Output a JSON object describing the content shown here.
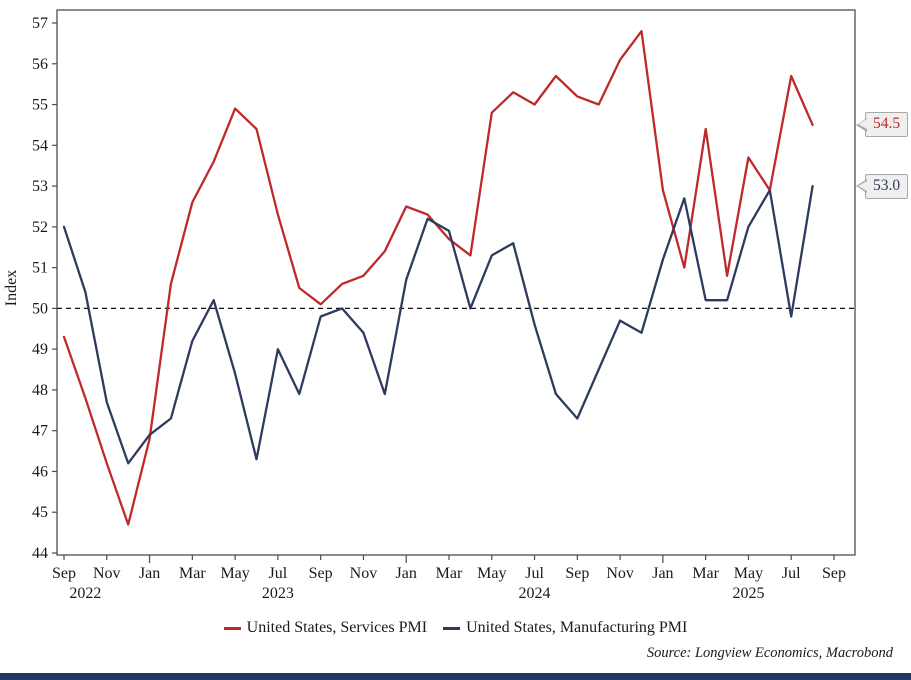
{
  "chart_data": {
    "type": "line",
    "title": "",
    "ylabel": "Index",
    "ylim": [
      44,
      57
    ],
    "y_tick_step": 1,
    "reference_line_y": 50,
    "grid": false,
    "legend_position": "bottom",
    "x": [
      "Sep 2022",
      "Oct 2022",
      "Nov 2022",
      "Dec 2022",
      "Jan 2023",
      "Feb 2023",
      "Mar 2023",
      "Apr 2023",
      "May 2023",
      "Jun 2023",
      "Jul 2023",
      "Aug 2023",
      "Sep 2023",
      "Oct 2023",
      "Nov 2023",
      "Dec 2023",
      "Jan 2024",
      "Feb 2024",
      "Mar 2024",
      "Apr 2024",
      "May 2024",
      "Jun 2024",
      "Jul 2024",
      "Aug 2024",
      "Sep 2024",
      "Oct 2024",
      "Nov 2024",
      "Dec 2024",
      "Jan 2025",
      "Feb 2025",
      "Mar 2025",
      "Apr 2025",
      "May 2025",
      "Jun 2025",
      "Jul 2025",
      "Aug 2025"
    ],
    "x_axis": {
      "tick_labels": [
        "Sep",
        "Nov",
        "Jan",
        "Mar",
        "May",
        "Jul",
        "Sep",
        "Nov",
        "Jan",
        "Mar",
        "May",
        "Jul",
        "Sep",
        "Nov",
        "Jan",
        "Mar",
        "May",
        "Jul",
        "Sep"
      ],
      "tick_every_months": 2,
      "year_labels": [
        {
          "text": "2022",
          "month_index": 1
        },
        {
          "text": "2023",
          "month_index": 10
        },
        {
          "text": "2024",
          "month_index": 22
        },
        {
          "text": "2025",
          "month_index": 32
        }
      ]
    },
    "series": [
      {
        "name": "United States, Services PMI",
        "color": "#be2a2b",
        "end_label": "54.5",
        "values": [
          49.3,
          47.8,
          46.2,
          44.7,
          46.8,
          50.6,
          52.6,
          53.6,
          54.9,
          54.4,
          52.3,
          50.5,
          50.1,
          50.6,
          50.8,
          51.4,
          52.5,
          52.3,
          51.7,
          51.3,
          54.8,
          55.3,
          55.0,
          55.7,
          55.2,
          55.0,
          56.1,
          56.8,
          52.9,
          51.0,
          54.4,
          50.8,
          53.7,
          52.9,
          55.7,
          54.5
        ]
      },
      {
        "name": "United States, Manufacturing PMI",
        "color": "#2f3a5f",
        "end_label": "53.0",
        "values": [
          52.0,
          50.4,
          47.7,
          46.2,
          46.9,
          47.3,
          49.2,
          50.2,
          48.4,
          46.3,
          49.0,
          47.9,
          49.8,
          50.0,
          49.4,
          47.9,
          50.7,
          52.2,
          51.9,
          50.0,
          51.3,
          51.6,
          49.6,
          47.9,
          47.3,
          48.5,
          49.7,
          49.4,
          51.2,
          52.7,
          50.2,
          50.2,
          52.0,
          52.9,
          49.8,
          53.0
        ]
      }
    ]
  },
  "source_note": "Source: Longview Economics, Macrobond",
  "colors": {
    "accent_bar": "#203864",
    "axis": "#4d4d4d",
    "reference_line": "#111111",
    "callout_bg": "#efefef",
    "callout_border": "#a8a8a8"
  }
}
